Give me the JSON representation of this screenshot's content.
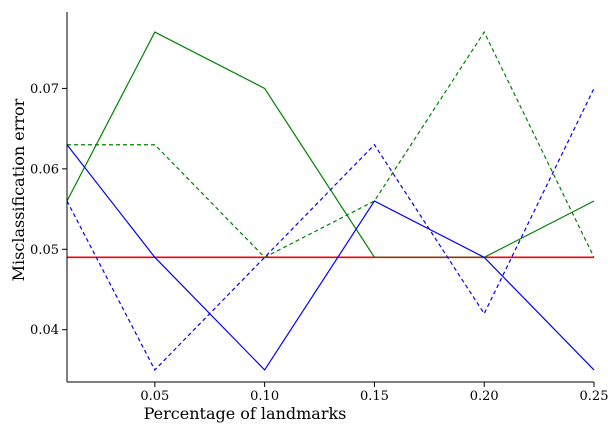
{
  "chart_data": {
    "type": "line",
    "xlabel": "Percentage of landmarks",
    "ylabel": "Misclassification error",
    "x": [
      0.01,
      0.05,
      0.1,
      0.15,
      0.2,
      0.25
    ],
    "xlim": [
      0.01,
      0.25
    ],
    "ylim": [
      0.0335,
      0.0795
    ],
    "xticks": [
      0.05,
      0.1,
      0.15,
      0.2,
      0.25
    ],
    "xtick_labels": [
      "0.05",
      "0.10",
      "0.15",
      "0.20",
      "0.25"
    ],
    "yticks": [
      0.04,
      0.05,
      0.06,
      0.07
    ],
    "ytick_labels": [
      "0.04",
      "0.05",
      "0.06",
      "0.07"
    ],
    "grid": false,
    "legend": "none",
    "series": [
      {
        "color": "#008000",
        "dash": "solid",
        "values": [
          0.056,
          0.077,
          0.07,
          0.049,
          0.049,
          0.056
        ]
      },
      {
        "color": "#008000",
        "dash": "dashed",
        "values": [
          0.063,
          0.063,
          0.049,
          0.056,
          0.077,
          0.049
        ]
      },
      {
        "color": "#0000ff",
        "dash": "solid",
        "values": [
          0.063,
          0.049,
          0.035,
          0.056,
          0.049,
          0.035
        ]
      },
      {
        "color": "#0000ff",
        "dash": "dashed",
        "values": [
          0.056,
          0.035,
          0.049,
          0.063,
          0.042,
          0.07
        ]
      }
    ],
    "hlines": [
      {
        "color": "#ff0000",
        "dash": "solid",
        "value": 0.049
      }
    ]
  }
}
